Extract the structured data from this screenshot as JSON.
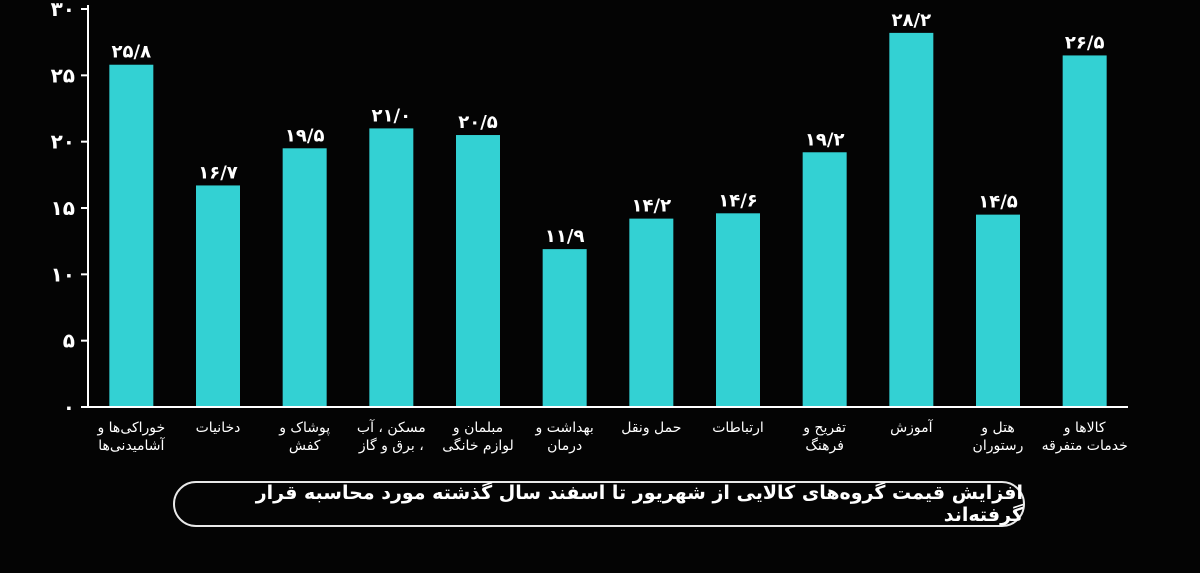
{
  "chart_data": {
    "type": "bar",
    "categories": [
      [
        "خوراکی‌ها و",
        "آشامیدنی‌ها"
      ],
      [
        "دخانیات"
      ],
      [
        "پوشاک و",
        "کفش"
      ],
      [
        "مسکن ، آب",
        "، برق و گاز"
      ],
      [
        "مبلمان و",
        "لوازم خانگی"
      ],
      [
        "بهداشت و",
        "درمان"
      ],
      [
        "حمل ونقل"
      ],
      [
        "ارتباطات"
      ],
      [
        "تفریح و",
        "فرهنگ"
      ],
      [
        "آموزش"
      ],
      [
        "هتل و",
        "رستوران"
      ],
      [
        "کالاها و",
        "خدمات متفرقه"
      ]
    ],
    "values": [
      25.8,
      16.7,
      19.5,
      21.0,
      20.5,
      11.9,
      14.2,
      14.6,
      19.2,
      28.2,
      14.5,
      26.5
    ],
    "value_labels": [
      "۲۵/۸",
      "۱۶/۷",
      "۱۹/۵",
      "۲۱/۰",
      "۲۰/۵",
      "۱۱/۹",
      "۱۴/۲",
      "۱۴/۶",
      "۱۹/۲",
      "۲۸/۲",
      "۱۴/۵",
      "۲۶/۵"
    ],
    "yticks": [
      0,
      5,
      10,
      15,
      20,
      25,
      30
    ],
    "ytick_labels": [
      "۰",
      "۵",
      "۱۰",
      "۱۵",
      "۲۰",
      "۲۵",
      "۳۰"
    ],
    "ylim": [
      0,
      30
    ],
    "bar_color": "#33d1d3",
    "axis_color": "#ffffff"
  },
  "caption": "افزایش قیمت گروه‌های کالایی از شهریور تا اسفند سال گذشته مورد محاسبه قرار گرفته‌اند"
}
